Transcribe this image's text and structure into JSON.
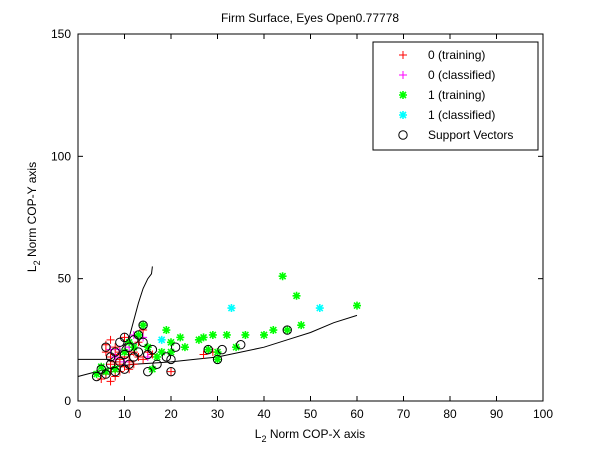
{
  "chart_data": {
    "type": "scatter",
    "title": "Firm Surface, Eyes Open0.77778",
    "xlabel": {
      "base": "L",
      "sub": "2",
      "rest": " Norm COP-X axis"
    },
    "ylabel": {
      "base": "L",
      "sub": "2",
      "rest": " Norm COP-Y axis"
    },
    "xlim": [
      0,
      100
    ],
    "ylim": [
      0,
      150
    ],
    "xticks": [
      0,
      10,
      20,
      30,
      40,
      50,
      60,
      70,
      80,
      90,
      100
    ],
    "yticks": [
      0,
      50,
      100,
      150
    ],
    "grid": false,
    "legend_position": "top-right",
    "series": [
      {
        "name": "0 (training)",
        "marker": "plus",
        "color": "#ff0000",
        "points": [
          [
            5,
            9
          ],
          [
            6,
            11
          ],
          [
            6,
            20
          ],
          [
            6,
            23
          ],
          [
            7,
            8
          ],
          [
            7,
            12
          ],
          [
            7,
            15
          ],
          [
            7,
            18
          ],
          [
            7,
            25
          ],
          [
            8,
            10
          ],
          [
            8,
            13
          ],
          [
            8,
            16
          ],
          [
            8,
            19
          ],
          [
            8,
            22
          ],
          [
            9,
            12
          ],
          [
            9,
            15
          ],
          [
            9,
            17
          ],
          [
            9,
            20
          ],
          [
            10,
            14
          ],
          [
            10,
            18
          ],
          [
            10,
            26
          ],
          [
            11,
            13
          ],
          [
            11,
            16
          ],
          [
            11,
            19
          ],
          [
            12,
            15
          ],
          [
            12,
            20
          ],
          [
            13,
            18
          ],
          [
            13,
            24
          ],
          [
            14,
            17
          ],
          [
            14,
            29
          ],
          [
            15,
            20
          ],
          [
            16,
            19
          ],
          [
            20,
            12
          ],
          [
            27,
            19
          ],
          [
            29,
            20
          ],
          [
            30,
            20
          ]
        ]
      },
      {
        "name": "0 (classified)",
        "marker": "plus",
        "color": "#ff00ff",
        "points": [
          [
            7,
            21
          ],
          [
            8,
            18
          ],
          [
            9,
            21
          ],
          [
            10,
            16
          ],
          [
            11,
            22
          ],
          [
            12,
            27
          ],
          [
            14,
            26
          ],
          [
            15,
            18
          ]
        ]
      },
      {
        "name": "1 (training)",
        "marker": "star",
        "color": "#00ff00",
        "points": [
          [
            4,
            11
          ],
          [
            5,
            14
          ],
          [
            6,
            12
          ],
          [
            8,
            13
          ],
          [
            10,
            20
          ],
          [
            11,
            24
          ],
          [
            12,
            22
          ],
          [
            13,
            27
          ],
          [
            14,
            31
          ],
          [
            15,
            22
          ],
          [
            16,
            13
          ],
          [
            17,
            18
          ],
          [
            18,
            20
          ],
          [
            19,
            29
          ],
          [
            20,
            24
          ],
          [
            20,
            20
          ],
          [
            22,
            26
          ],
          [
            23,
            22
          ],
          [
            26,
            25
          ],
          [
            27,
            26
          ],
          [
            28,
            21
          ],
          [
            29,
            27
          ],
          [
            30,
            17
          ],
          [
            30,
            20
          ],
          [
            32,
            27
          ],
          [
            34,
            22
          ],
          [
            36,
            27
          ],
          [
            40,
            27
          ],
          [
            42,
            29
          ],
          [
            44,
            51
          ],
          [
            45,
            29
          ],
          [
            47,
            43
          ],
          [
            48,
            31
          ],
          [
            60,
            39
          ]
        ]
      },
      {
        "name": "1 (classified)",
        "marker": "star",
        "color": "#00ffff",
        "points": [
          [
            18,
            25
          ],
          [
            33,
            38
          ],
          [
            52,
            38
          ]
        ]
      },
      {
        "name": "Support Vectors",
        "marker": "circle",
        "color": "#000000",
        "points": [
          [
            4,
            10
          ],
          [
            5,
            13
          ],
          [
            6,
            11
          ],
          [
            6,
            22
          ],
          [
            7,
            18
          ],
          [
            7,
            15
          ],
          [
            8,
            12
          ],
          [
            8,
            20
          ],
          [
            9,
            16
          ],
          [
            9,
            24
          ],
          [
            10,
            13
          ],
          [
            10,
            19
          ],
          [
            10,
            26
          ],
          [
            11,
            15
          ],
          [
            11,
            22
          ],
          [
            12,
            18
          ],
          [
            12,
            25
          ],
          [
            13,
            20
          ],
          [
            13,
            27
          ],
          [
            14,
            31
          ],
          [
            14,
            24
          ],
          [
            15,
            12
          ],
          [
            15,
            19
          ],
          [
            16,
            21
          ],
          [
            17,
            15
          ],
          [
            19,
            18
          ],
          [
            20,
            17
          ],
          [
            21,
            22
          ],
          [
            20,
            12
          ],
          [
            28,
            21
          ],
          [
            30,
            17
          ],
          [
            31,
            21
          ],
          [
            35,
            23
          ],
          [
            45,
            29
          ]
        ]
      }
    ],
    "boundary_curves": [
      {
        "points": [
          [
            0,
            10
          ],
          [
            4,
            12
          ],
          [
            8,
            14
          ],
          [
            12,
            15
          ],
          [
            16,
            15.5
          ],
          [
            20,
            16
          ],
          [
            25,
            17
          ],
          [
            30,
            18
          ],
          [
            35,
            20
          ],
          [
            40,
            22
          ],
          [
            45,
            25
          ],
          [
            50,
            28
          ],
          [
            55,
            32
          ],
          [
            60,
            35
          ]
        ]
      },
      {
        "points": [
          [
            0,
            17
          ],
          [
            4,
            17
          ],
          [
            7,
            17
          ],
          [
            9,
            20
          ],
          [
            11,
            26
          ],
          [
            12,
            33
          ],
          [
            13,
            40
          ],
          [
            14,
            46
          ],
          [
            15,
            50
          ],
          [
            15.8,
            52
          ],
          [
            16,
            55
          ]
        ]
      }
    ]
  }
}
